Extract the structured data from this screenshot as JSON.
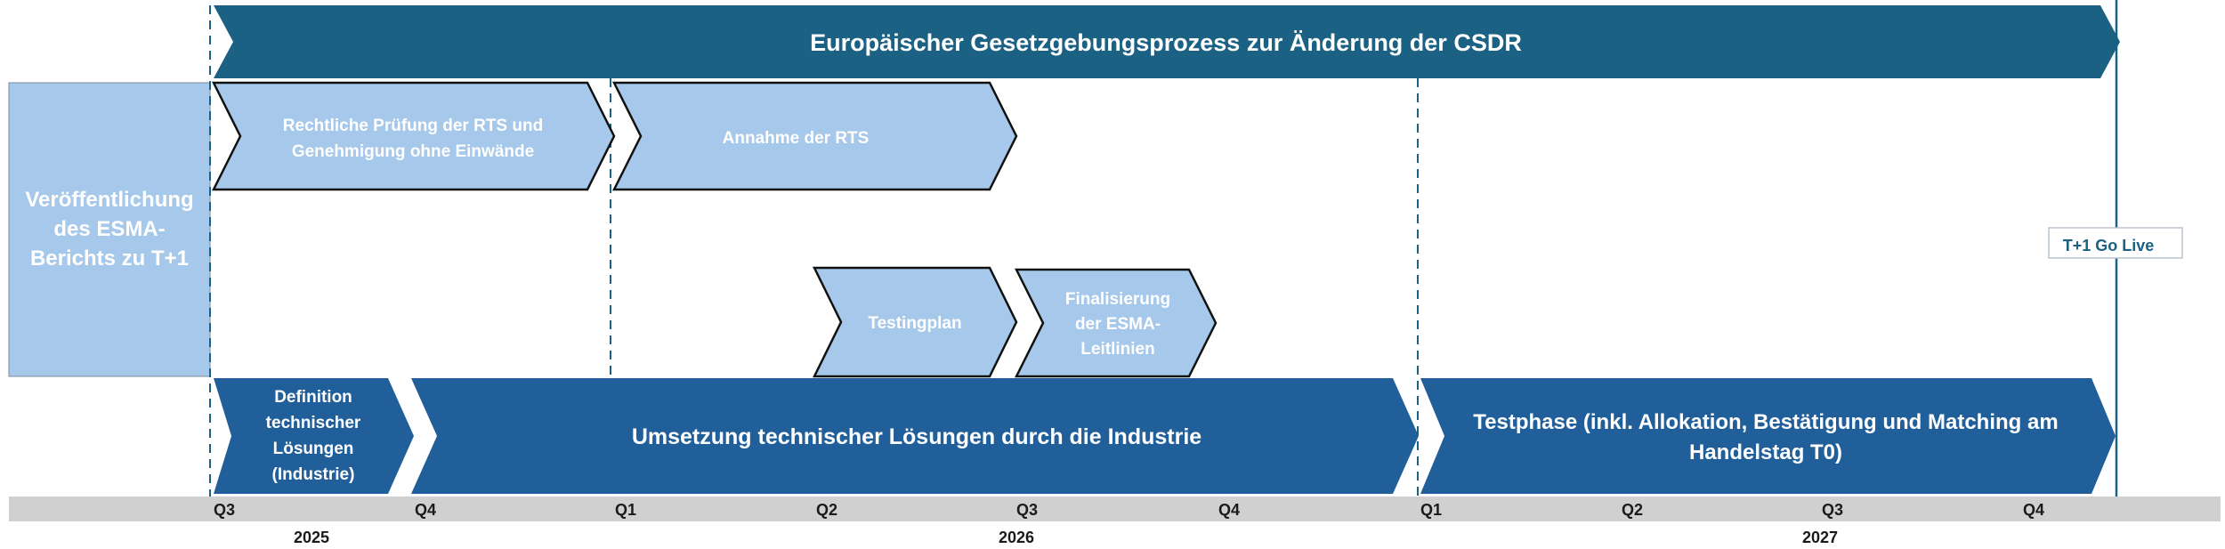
{
  "header": {
    "title": "Europäischer Gesetzgebungsprozess zur Änderung der CSDR"
  },
  "esma_report": {
    "lines": [
      "Veröffentlichung",
      "des ESMA-",
      "Berichts zu T+1"
    ]
  },
  "steps": {
    "legal_review": {
      "lines": [
        "Rechtliche Prüfung der RTS und",
        "Genehmigung ohne Einwände"
      ]
    },
    "adoption": {
      "lines": [
        "Annahme der RTS"
      ]
    },
    "testing_plan": {
      "lines": [
        "Testingplan"
      ]
    },
    "esma_guidelines": {
      "lines": [
        "Finalisierung",
        "der ESMA-",
        "Leitlinien"
      ]
    }
  },
  "phases": {
    "definition": {
      "lines": [
        "Definition",
        "technischer",
        "Lösungen",
        "(Industrie)"
      ]
    },
    "implementation": {
      "lines": [
        "Umsetzung technischer Lösungen durch die Industrie"
      ]
    },
    "testing": {
      "lines": [
        "Testphase (inkl. Allokation, Bestätigung und Matching am",
        "Handelstag T0)"
      ]
    }
  },
  "milestone": {
    "label": "T+1 Go Live"
  },
  "timeline": {
    "quarters": [
      "Q3",
      "Q4",
      "Q1",
      "Q2",
      "Q3",
      "Q4",
      "Q1",
      "Q2",
      "Q3",
      "Q4"
    ],
    "years": [
      "2025",
      "2026",
      "2027"
    ]
  },
  "colors": {
    "header": "#1b6183",
    "light_step": "#a6c8ea",
    "dark_phase": "#215f9a",
    "dashed_line": "#1b6183",
    "axis_bar": "#d0d0d0",
    "milestone_text": "#1b6183"
  }
}
